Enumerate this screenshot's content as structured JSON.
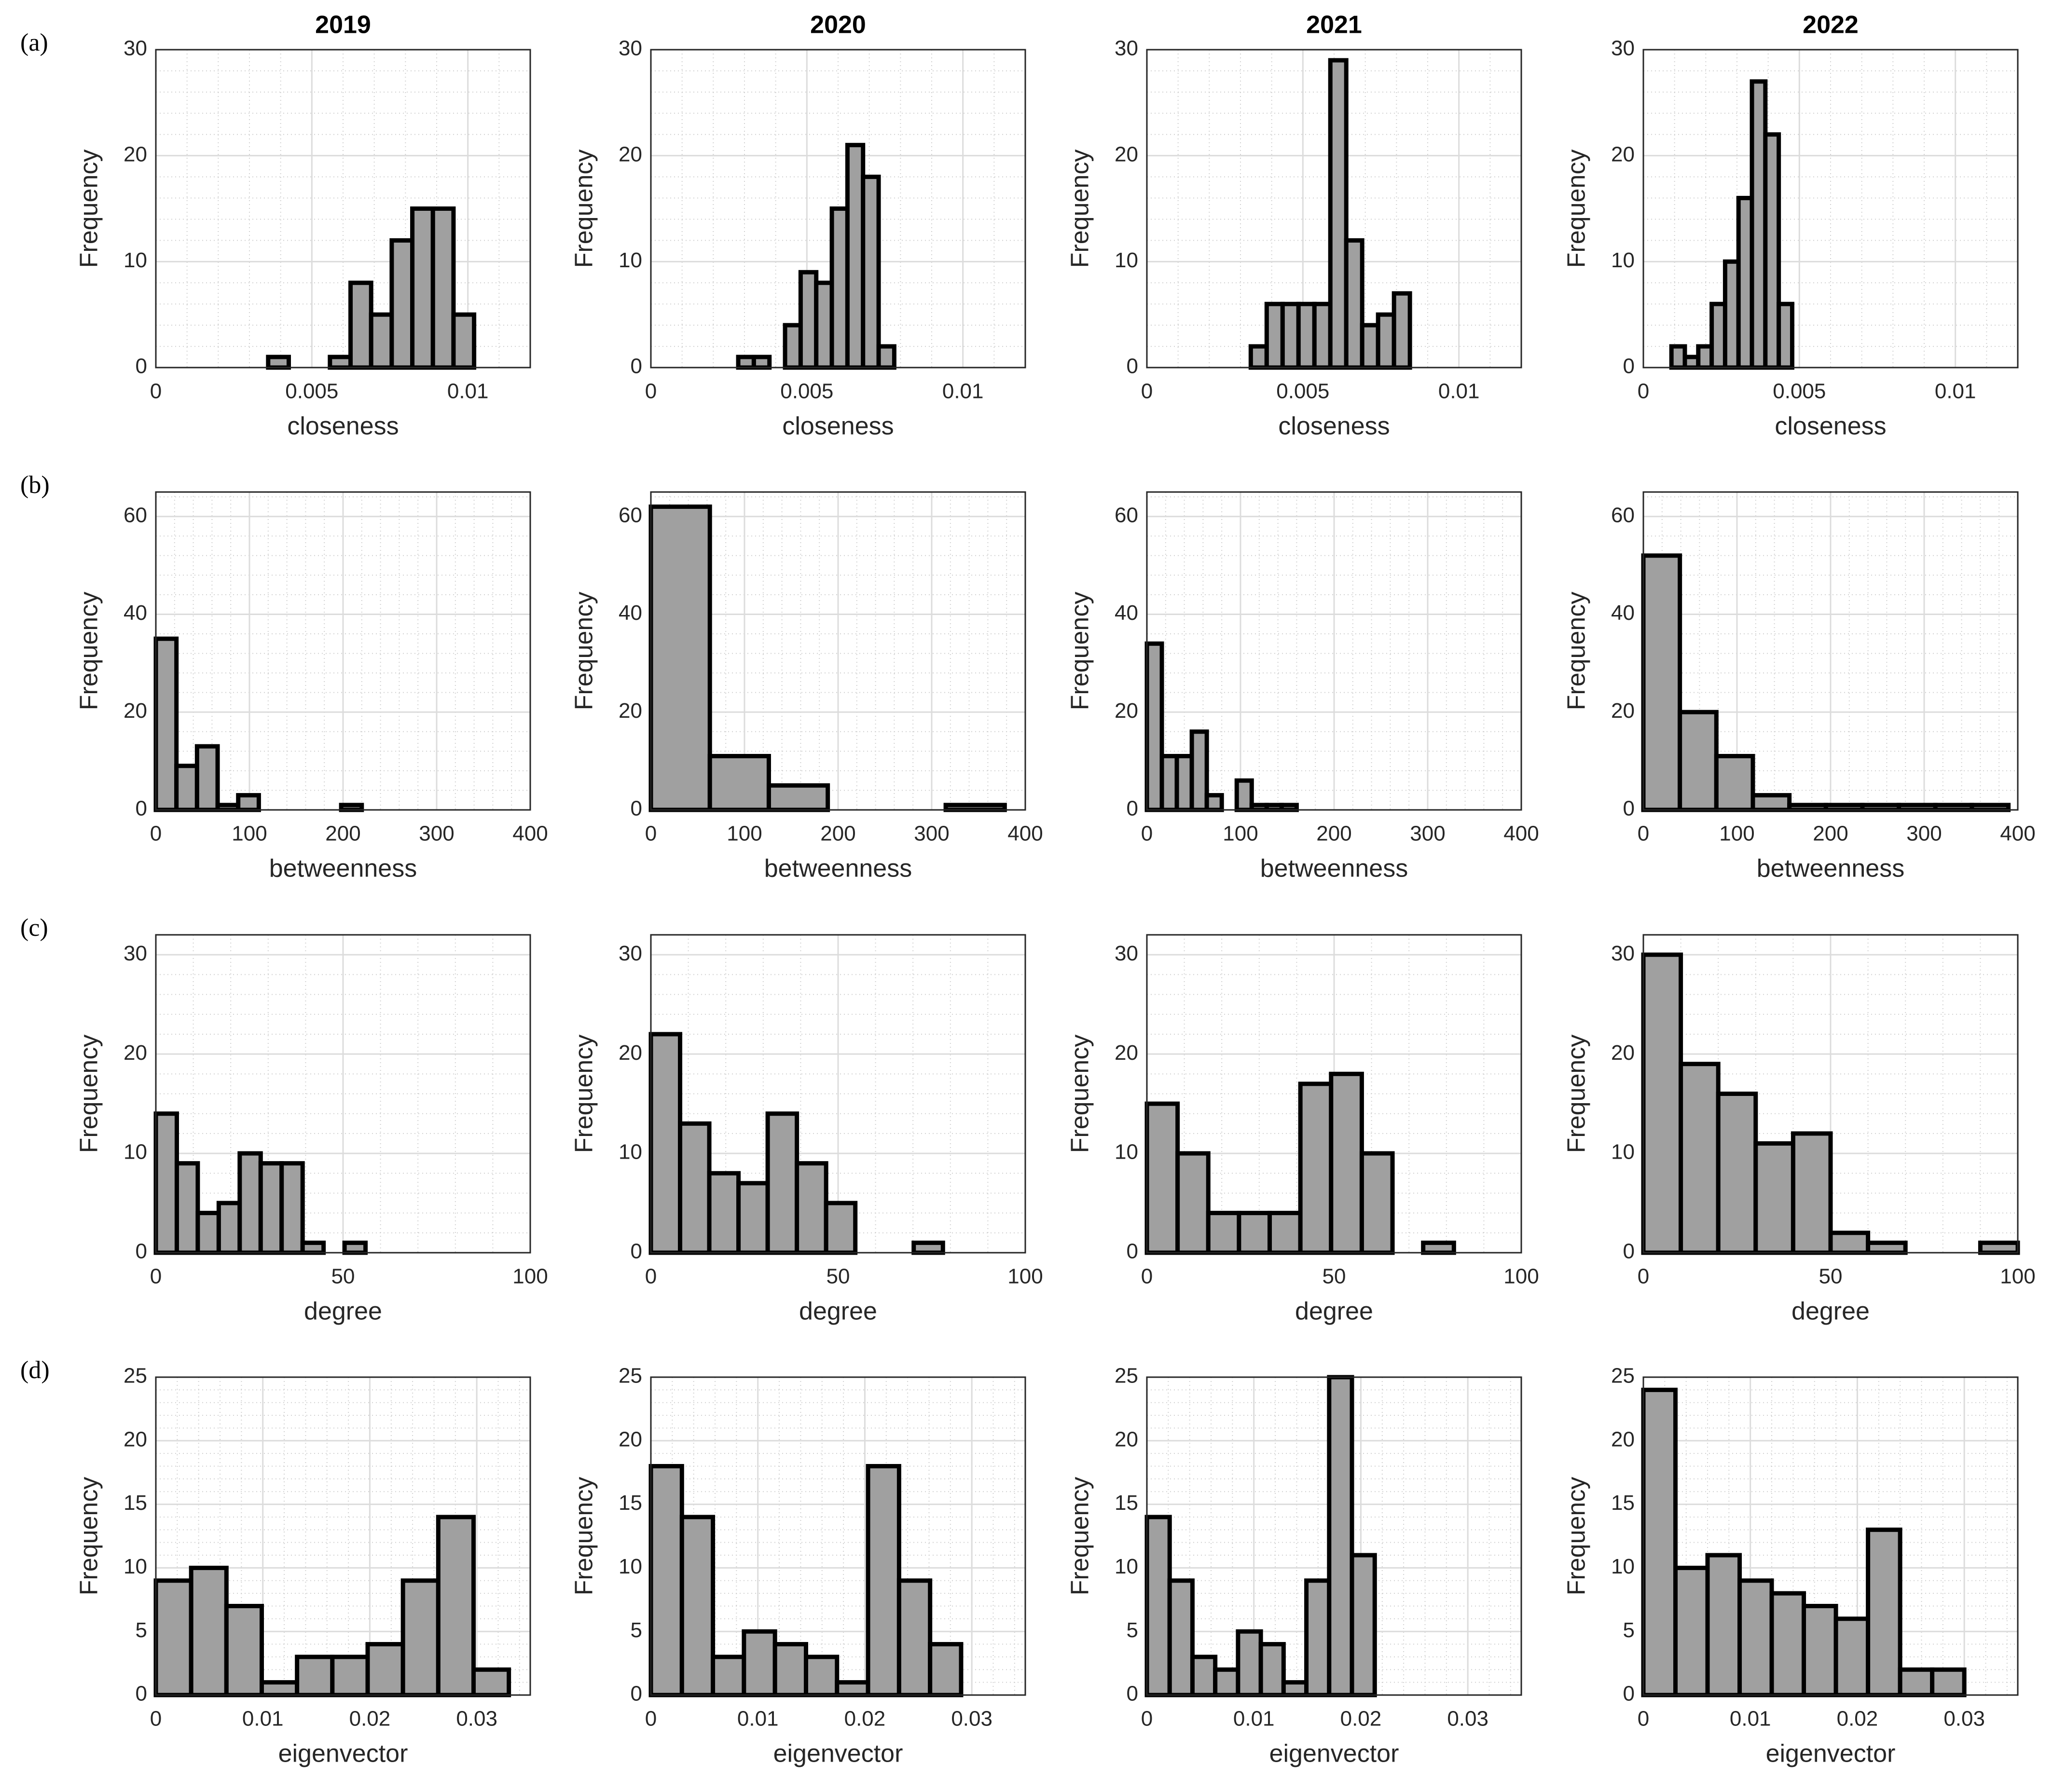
{
  "chart_data": [
    {
      "type": "histogram",
      "panel_label": "(a)",
      "title": "2019",
      "xlabel": "closeness",
      "ylabel": "Frequency",
      "bins": [
        0.0036,
        0.00426,
        0.00492,
        0.00558,
        0.00624,
        0.0069,
        0.00756,
        0.00822,
        0.00888,
        0.00954,
        0.0102
      ],
      "values": [
        1,
        0,
        0,
        1,
        8,
        5,
        12,
        15,
        15,
        5
      ],
      "xlim": [
        0,
        0.012
      ],
      "xticks": [
        0,
        0.005,
        0.01
      ],
      "ylim": [
        0,
        30
      ],
      "yticks": [
        0,
        10,
        20,
        30
      ],
      "grid": true,
      "minor_grid": true,
      "color": "#a0a0a0",
      "edge_color": "#000000"
    },
    {
      "type": "histogram",
      "title": "2020",
      "xlabel": "closeness",
      "ylabel": "Frequency",
      "bins": [
        0.0028,
        0.0033,
        0.0038,
        0.0043,
        0.0048,
        0.0053,
        0.0058,
        0.0063,
        0.0068,
        0.0073,
        0.0078
      ],
      "values": [
        1,
        1,
        0,
        4,
        9,
        8,
        15,
        21,
        18,
        2
      ],
      "xlim": [
        0,
        0.012
      ],
      "xticks": [
        0,
        0.005,
        0.01
      ],
      "ylim": [
        0,
        30
      ],
      "yticks": [
        0,
        10,
        20,
        30
      ],
      "grid": true,
      "minor_grid": true,
      "color": "#a0a0a0",
      "edge_color": "#000000"
    },
    {
      "type": "histogram",
      "title": "2021",
      "xlabel": "closeness",
      "ylabel": "Frequency",
      "bins": [
        0.00333,
        0.00384,
        0.00435,
        0.00486,
        0.00537,
        0.00588,
        0.00639,
        0.0069,
        0.00741,
        0.00792,
        0.00843
      ],
      "values": [
        2,
        6,
        6,
        6,
        6,
        29,
        12,
        4,
        5,
        7
      ],
      "xlim": [
        0,
        0.012
      ],
      "xticks": [
        0,
        0.005,
        0.01
      ],
      "ylim": [
        0,
        30
      ],
      "yticks": [
        0,
        10,
        20,
        30
      ],
      "grid": true,
      "minor_grid": true,
      "color": "#a0a0a0",
      "edge_color": "#000000"
    },
    {
      "type": "histogram",
      "title": "2022",
      "xlabel": "closeness",
      "ylabel": "Frequency",
      "bins": [
        0.0009,
        0.00133,
        0.00176,
        0.00219,
        0.00262,
        0.00305,
        0.00348,
        0.00391,
        0.00434,
        0.00477
      ],
      "values": [
        2,
        1,
        2,
        6,
        10,
        16,
        27,
        22,
        6
      ],
      "xlim": [
        0,
        0.012
      ],
      "xticks": [
        0,
        0.005,
        0.01
      ],
      "ylim": [
        0,
        30
      ],
      "yticks": [
        0,
        10,
        20,
        30
      ],
      "grid": true,
      "minor_grid": true,
      "color": "#a0a0a0",
      "edge_color": "#000000"
    },
    {
      "type": "histogram",
      "panel_label": "(b)",
      "xlabel": "betweenness",
      "ylabel": "Frequency",
      "bins": [
        0,
        22,
        44,
        66,
        88,
        110,
        132,
        154,
        176,
        198,
        220
      ],
      "values": [
        35,
        9,
        13,
        1,
        3,
        0,
        0,
        0,
        0,
        1
      ],
      "xlim": [
        0,
        400
      ],
      "xticks": [
        0,
        100,
        200,
        300,
        400
      ],
      "ylim": [
        0,
        65
      ],
      "yticks": [
        0,
        20,
        40,
        60
      ],
      "grid": true,
      "minor_grid": true,
      "color": "#a0a0a0",
      "edge_color": "#000000"
    },
    {
      "type": "histogram",
      "xlabel": "betweenness",
      "ylabel": "Frequency",
      "bins": [
        0,
        63,
        126,
        189,
        252,
        315,
        378
      ],
      "values": [
        62,
        11,
        5,
        0,
        0,
        1
      ],
      "xlim": [
        0,
        400
      ],
      "xticks": [
        0,
        100,
        200,
        300,
        400
      ],
      "ylim": [
        0,
        65
      ],
      "yticks": [
        0,
        20,
        40,
        60
      ],
      "grid": true,
      "minor_grid": true,
      "color": "#a0a0a0",
      "edge_color": "#000000"
    },
    {
      "type": "histogram",
      "xlabel": "betweenness",
      "ylabel": "Frequency",
      "bins": [
        0,
        16,
        32,
        48,
        64,
        80,
        96,
        112,
        128,
        144,
        160
      ],
      "values": [
        34,
        11,
        11,
        16,
        3,
        0,
        6,
        1,
        1,
        1
      ],
      "xlim": [
        0,
        400
      ],
      "xticks": [
        0,
        100,
        200,
        300,
        400
      ],
      "ylim": [
        0,
        65
      ],
      "yticks": [
        0,
        20,
        40,
        60
      ],
      "grid": true,
      "minor_grid": true,
      "color": "#a0a0a0",
      "edge_color": "#000000"
    },
    {
      "type": "histogram",
      "xlabel": "betweenness",
      "ylabel": "Frequency",
      "bins": [
        0,
        39,
        78,
        117,
        156,
        195,
        234,
        273,
        312,
        351,
        390
      ],
      "values": [
        52,
        20,
        11,
        3,
        1,
        1,
        1,
        1,
        1,
        1
      ],
      "xlim": [
        0,
        400
      ],
      "xticks": [
        0,
        100,
        200,
        300,
        400
      ],
      "ylim": [
        0,
        65
      ],
      "yticks": [
        0,
        20,
        40,
        60
      ],
      "grid": true,
      "minor_grid": true,
      "color": "#a0a0a0",
      "edge_color": "#000000"
    },
    {
      "type": "histogram",
      "panel_label": "(c)",
      "xlabel": "degree",
      "ylabel": "Frequency",
      "bins": [
        0,
        5.6,
        11.2,
        16.8,
        22.4,
        28,
        33.6,
        39.2,
        44.8,
        50.4,
        56
      ],
      "values": [
        14,
        9,
        4,
        5,
        10,
        9,
        9,
        1,
        0,
        1
      ],
      "xlim": [
        0,
        100
      ],
      "xticks": [
        0,
        50,
        100
      ],
      "ylim": [
        0,
        32
      ],
      "yticks": [
        0,
        10,
        20,
        30
      ],
      "grid": true,
      "minor_grid": true,
      "color": "#a0a0a0",
      "edge_color": "#000000"
    },
    {
      "type": "histogram",
      "xlabel": "degree",
      "ylabel": "Frequency",
      "bins": [
        0,
        7.8,
        15.6,
        23.4,
        31.2,
        39,
        46.8,
        54.6,
        62.4,
        70.2,
        78
      ],
      "values": [
        22,
        13,
        8,
        7,
        14,
        9,
        5,
        0,
        0,
        1
      ],
      "xlim": [
        0,
        100
      ],
      "xticks": [
        0,
        50,
        100
      ],
      "ylim": [
        0,
        32
      ],
      "yticks": [
        0,
        10,
        20,
        30
      ],
      "grid": true,
      "minor_grid": true,
      "color": "#a0a0a0",
      "edge_color": "#000000"
    },
    {
      "type": "histogram",
      "xlabel": "degree",
      "ylabel": "Frequency",
      "bins": [
        0,
        8.2,
        16.4,
        24.6,
        32.8,
        41,
        49.2,
        57.4,
        65.6,
        73.8,
        82
      ],
      "values": [
        15,
        10,
        4,
        4,
        4,
        17,
        18,
        10,
        0,
        1
      ],
      "xlim": [
        0,
        100
      ],
      "xticks": [
        0,
        50,
        100
      ],
      "ylim": [
        0,
        32
      ],
      "yticks": [
        0,
        10,
        20,
        30
      ],
      "grid": true,
      "minor_grid": true,
      "color": "#a0a0a0",
      "edge_color": "#000000"
    },
    {
      "type": "histogram",
      "xlabel": "degree",
      "ylabel": "Frequency",
      "bins": [
        0,
        10,
        20,
        30,
        40,
        50,
        60,
        70,
        80,
        90,
        100
      ],
      "values": [
        30,
        19,
        16,
        11,
        12,
        2,
        1,
        0,
        0,
        1
      ],
      "xlim": [
        0,
        100
      ],
      "xticks": [
        0,
        50,
        100
      ],
      "ylim": [
        0,
        32
      ],
      "yticks": [
        0,
        10,
        20,
        30
      ],
      "grid": true,
      "minor_grid": true,
      "color": "#a0a0a0",
      "edge_color": "#000000"
    },
    {
      "type": "histogram",
      "panel_label": "(d)",
      "xlabel": "eigenvector",
      "ylabel": "Frequency",
      "bins": [
        0,
        0.0033,
        0.0066,
        0.0099,
        0.0132,
        0.0165,
        0.0198,
        0.0231,
        0.0264,
        0.0297,
        0.033
      ],
      "values": [
        9,
        10,
        7,
        1,
        3,
        3,
        4,
        9,
        14,
        2
      ],
      "xlim": [
        0,
        0.035
      ],
      "xticks": [
        0,
        0.01,
        0.02,
        0.03
      ],
      "ylim": [
        0,
        25
      ],
      "yticks": [
        0,
        5,
        10,
        15,
        20,
        25
      ],
      "grid": true,
      "minor_grid": true,
      "color": "#a0a0a0",
      "edge_color": "#000000"
    },
    {
      "type": "histogram",
      "xlabel": "eigenvector",
      "ylabel": "Frequency",
      "bins": [
        0,
        0.0029,
        0.0058,
        0.0087,
        0.0116,
        0.0145,
        0.0174,
        0.0203,
        0.0232,
        0.0261,
        0.029
      ],
      "values": [
        18,
        14,
        3,
        5,
        4,
        3,
        1,
        18,
        9,
        4
      ],
      "xlim": [
        0,
        0.035
      ],
      "xticks": [
        0,
        0.01,
        0.02,
        0.03
      ],
      "ylim": [
        0,
        25
      ],
      "yticks": [
        0,
        5,
        10,
        15,
        20,
        25
      ],
      "grid": true,
      "minor_grid": true,
      "color": "#a0a0a0",
      "edge_color": "#000000"
    },
    {
      "type": "histogram",
      "xlabel": "eigenvector",
      "ylabel": "Frequency",
      "bins": [
        0,
        0.00213,
        0.00426,
        0.00639,
        0.00852,
        0.01065,
        0.01278,
        0.01491,
        0.01704,
        0.01917,
        0.0213
      ],
      "values": [
        14,
        9,
        3,
        2,
        5,
        4,
        1,
        9,
        25,
        11
      ],
      "xlim": [
        0,
        0.035
      ],
      "xticks": [
        0,
        0.01,
        0.02,
        0.03
      ],
      "ylim": [
        0,
        25
      ],
      "yticks": [
        0,
        5,
        10,
        15,
        20,
        25
      ],
      "grid": true,
      "minor_grid": true,
      "color": "#a0a0a0",
      "edge_color": "#000000"
    },
    {
      "type": "histogram",
      "xlabel": "eigenvector",
      "ylabel": "Frequency",
      "bins": [
        0,
        0.003,
        0.006,
        0.009,
        0.012,
        0.015,
        0.018,
        0.021,
        0.024,
        0.027,
        0.03
      ],
      "values": [
        24,
        10,
        11,
        9,
        8,
        7,
        6,
        13,
        2,
        2
      ],
      "xlim": [
        0,
        0.035
      ],
      "xticks": [
        0,
        0.01,
        0.02,
        0.03
      ],
      "ylim": [
        0,
        25
      ],
      "yticks": [
        0,
        5,
        10,
        15,
        20,
        25
      ],
      "grid": true,
      "minor_grid": true,
      "color": "#a0a0a0",
      "edge_color": "#000000"
    }
  ]
}
